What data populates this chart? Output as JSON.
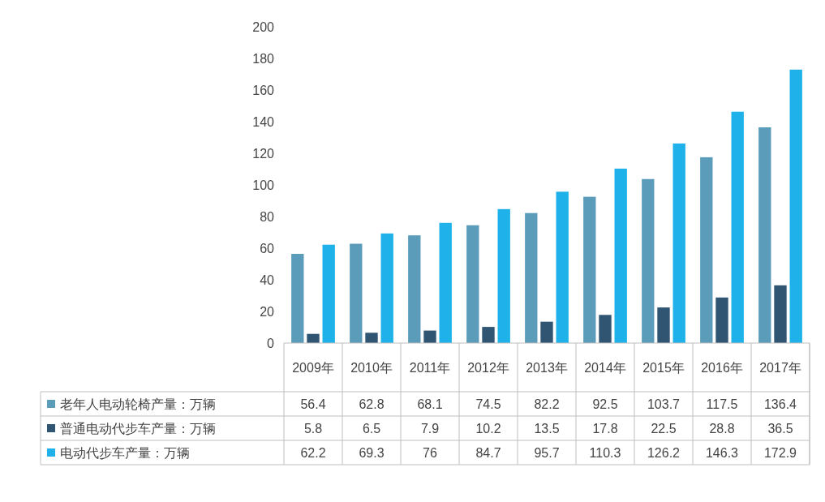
{
  "chart_data": {
    "type": "bar",
    "categories": [
      "2009年",
      "2010年",
      "2011年",
      "2012年",
      "2013年",
      "2014年",
      "2015年",
      "2016年",
      "2017年"
    ],
    "series": [
      {
        "name": "老年人电动轮椅产量：万辆",
        "color": "#5b9cba",
        "values": [
          56.4,
          62.8,
          68.1,
          74.5,
          82.2,
          92.5,
          103.7,
          117.5,
          136.4
        ]
      },
      {
        "name": "普通电动代步车产量：万辆",
        "color": "#2f5573",
        "values": [
          5.8,
          6.5,
          7.9,
          10.2,
          13.5,
          17.8,
          22.5,
          28.8,
          36.5
        ]
      },
      {
        "name": "电动代步车产量：万辆",
        "color": "#1eb1ea",
        "values": [
          62.2,
          69.3,
          76,
          84.7,
          95.7,
          110.3,
          126.2,
          146.3,
          172.9
        ]
      }
    ],
    "ylim": [
      0,
      200
    ],
    "yticks": [
      0,
      20,
      40,
      60,
      80,
      100,
      120,
      140,
      160,
      180,
      200
    ],
    "data_labels": true,
    "legend": "bottom"
  }
}
